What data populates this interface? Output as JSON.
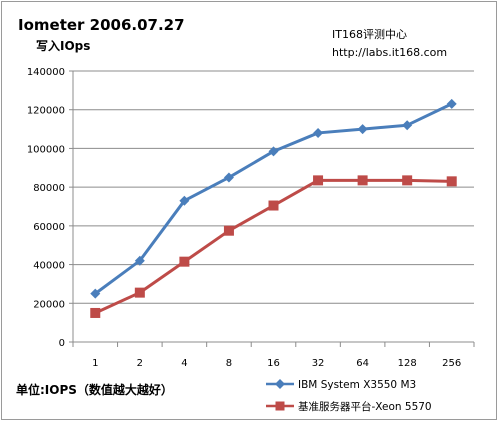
{
  "chart_data": {
    "type": "line",
    "title": "Iometer 2006.07.27",
    "subtitle": "写入IOps",
    "watermark": [
      "IT168评测中心",
      "http://labs.it168.com"
    ],
    "footnote": "单位:IOPS（数值越大越好）",
    "categories": [
      "1",
      "2",
      "4",
      "8",
      "16",
      "32",
      "64",
      "128",
      "256"
    ],
    "ylim": [
      0,
      140000
    ],
    "yticks": [
      0,
      20000,
      40000,
      60000,
      80000,
      100000,
      120000,
      140000
    ],
    "ytick_labels": [
      "0",
      "20000",
      "40000",
      "60000",
      "80000",
      "100000",
      "120000",
      "140000"
    ],
    "grid": "horizontal",
    "legend_position": "bottom-right",
    "series": [
      {
        "name": "IBM System X3550 M3",
        "color": "#4a7ebb",
        "marker": "diamond",
        "values": [
          25000,
          42000,
          73000,
          85000,
          98500,
          108000,
          110000,
          112000,
          123000
        ]
      },
      {
        "name": "基准服务器平台-Xeon 5570",
        "color": "#be4b48",
        "marker": "square",
        "values": [
          15000,
          25500,
          41500,
          57500,
          70500,
          83500,
          83500,
          83500,
          83000
        ]
      }
    ]
  }
}
